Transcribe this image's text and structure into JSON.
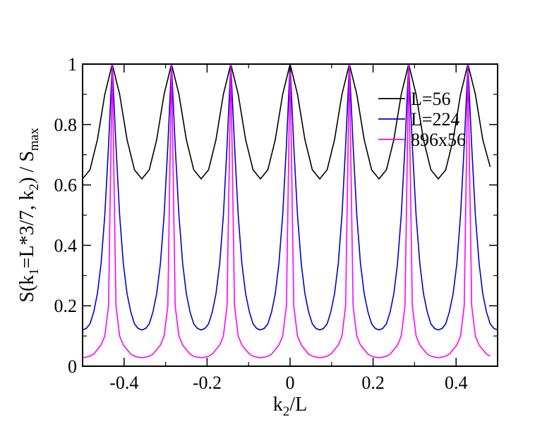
{
  "chart_data": {
    "type": "line",
    "title": "",
    "xlabel": {
      "main": "k",
      "sub": "2",
      "rest": "/L"
    },
    "ylabel": {
      "parts": [
        {
          "t": "S(k",
          "sub": false
        },
        {
          "t": "1",
          "sub": true
        },
        {
          "t": "=L*3/7, k",
          "sub": false
        },
        {
          "t": "2",
          "sub": true
        },
        {
          "t": ") / S",
          "sub": false
        },
        {
          "t": "max",
          "sub": true
        }
      ]
    },
    "xlim": [
      -0.5,
      0.5
    ],
    "ylim": [
      0,
      1
    ],
    "xticks": [
      -0.4,
      -0.2,
      0,
      0.2,
      0.4
    ],
    "xtick_labels": [
      "-0.4",
      "-0.2",
      "0",
      "0.2",
      "0.4"
    ],
    "yticks": [
      0,
      0.2,
      0.4,
      0.6,
      0.8,
      1
    ],
    "ytick_labels": [
      "0",
      "0.2",
      "0.4",
      "0.6",
      "0.8",
      "1"
    ],
    "grid": false,
    "legend_position": "top-right",
    "series": [
      {
        "name": "L=56",
        "color": "#000000",
        "x": [
          -0.5,
          -0.4821,
          -0.4643,
          -0.4464,
          -0.4286,
          -0.4107,
          -0.3929,
          -0.375,
          -0.3571,
          -0.3393,
          -0.3214,
          -0.3036,
          -0.2857,
          -0.2679,
          -0.25,
          -0.2321,
          -0.2143,
          -0.1964,
          -0.1786,
          -0.1607,
          -0.1429,
          -0.125,
          -0.1071,
          -0.0893,
          -0.0714,
          -0.0536,
          -0.0357,
          -0.0179,
          0,
          0.0179,
          0.0357,
          0.0536,
          0.0714,
          0.0893,
          0.1071,
          0.125,
          0.1429,
          0.1607,
          0.1786,
          0.1964,
          0.2143,
          0.2321,
          0.25,
          0.2679,
          0.2857,
          0.3036,
          0.3214,
          0.3393,
          0.3571,
          0.375,
          0.3929,
          0.4107,
          0.4286,
          0.4464,
          0.4643,
          0.4821
        ],
        "values": [
          0.62,
          0.65,
          0.75,
          0.9,
          1.0,
          0.9,
          0.75,
          0.65,
          0.62,
          0.65,
          0.75,
          0.9,
          1.0,
          0.9,
          0.75,
          0.65,
          0.62,
          0.65,
          0.75,
          0.9,
          1.0,
          0.9,
          0.75,
          0.65,
          0.62,
          0.65,
          0.75,
          0.9,
          1.0,
          0.9,
          0.75,
          0.65,
          0.62,
          0.65,
          0.75,
          0.9,
          1.0,
          0.9,
          0.75,
          0.65,
          0.62,
          0.65,
          0.75,
          0.9,
          1.0,
          0.9,
          0.75,
          0.65,
          0.62,
          0.65,
          0.75,
          0.9,
          1.0,
          0.9,
          0.75,
          0.66
        ]
      },
      {
        "name": "L=224",
        "color": "#0000cc",
        "x": [
          -0.5,
          -0.4911,
          -0.4821,
          -0.4732,
          -0.4643,
          -0.4554,
          -0.4464,
          -0.4375,
          -0.4286,
          -0.4196,
          -0.4107,
          -0.4018,
          -0.3929,
          -0.3839,
          -0.375,
          -0.3661,
          -0.3571,
          -0.3482,
          -0.3393,
          -0.3304,
          -0.3214,
          -0.3125,
          -0.3036,
          -0.2946,
          -0.2857,
          -0.2768,
          -0.2679,
          -0.2589,
          -0.25,
          -0.2411,
          -0.2321,
          -0.2232,
          -0.2143,
          -0.2054,
          -0.1964,
          -0.1875,
          -0.1786,
          -0.1696,
          -0.1607,
          -0.1518,
          -0.1429,
          -0.1339,
          -0.125,
          -0.1161,
          -0.1071,
          -0.0982,
          -0.0893,
          -0.0804,
          -0.0714,
          -0.0625,
          -0.0536,
          -0.0446,
          -0.0357,
          -0.0268,
          -0.0179,
          -0.0089,
          0,
          0.0089,
          0.0179,
          0.0268,
          0.0357,
          0.0446,
          0.0536,
          0.0625,
          0.0714,
          0.0804,
          0.0893,
          0.0982,
          0.1071,
          0.1161,
          0.125,
          0.1339,
          0.1429,
          0.1518,
          0.1607,
          0.1696,
          0.1786,
          0.1875,
          0.1964,
          0.2054,
          0.2143,
          0.2232,
          0.2321,
          0.2411,
          0.25,
          0.2589,
          0.2679,
          0.2768,
          0.2857,
          0.2946,
          0.3036,
          0.3125,
          0.3214,
          0.3304,
          0.3393,
          0.3482,
          0.3571,
          0.3661,
          0.375,
          0.3839,
          0.3929,
          0.4018,
          0.4107,
          0.4196,
          0.4286,
          0.4375,
          0.4464,
          0.4554,
          0.4643,
          0.4732,
          0.4821,
          0.4911,
          0.5
        ],
        "values": [
          0.12,
          0.125,
          0.14,
          0.18,
          0.24,
          0.34,
          0.5,
          0.73,
          1.0,
          0.73,
          0.5,
          0.34,
          0.24,
          0.18,
          0.14,
          0.125,
          0.12,
          0.125,
          0.14,
          0.18,
          0.24,
          0.34,
          0.5,
          0.73,
          1.0,
          0.73,
          0.5,
          0.34,
          0.24,
          0.18,
          0.14,
          0.125,
          0.12,
          0.125,
          0.14,
          0.18,
          0.24,
          0.34,
          0.5,
          0.73,
          1.0,
          0.73,
          0.5,
          0.34,
          0.24,
          0.18,
          0.14,
          0.125,
          0.12,
          0.125,
          0.14,
          0.18,
          0.24,
          0.34,
          0.5,
          0.73,
          1.0,
          0.73,
          0.5,
          0.34,
          0.24,
          0.18,
          0.14,
          0.125,
          0.12,
          0.125,
          0.14,
          0.18,
          0.24,
          0.34,
          0.5,
          0.73,
          1.0,
          0.73,
          0.5,
          0.34,
          0.24,
          0.18,
          0.14,
          0.125,
          0.12,
          0.125,
          0.14,
          0.18,
          0.24,
          0.34,
          0.5,
          0.73,
          1.0,
          0.73,
          0.5,
          0.34,
          0.24,
          0.18,
          0.14,
          0.125,
          0.12,
          0.125,
          0.14,
          0.18,
          0.24,
          0.34,
          0.5,
          0.73,
          1.0,
          0.73,
          0.5,
          0.34,
          0.24,
          0.18,
          0.14,
          0.125,
          0.12
        ]
      },
      {
        "name": "896x56",
        "color": "#ff00ff",
        "x": [
          -0.5,
          -0.4911,
          -0.4821,
          -0.4732,
          -0.4643,
          -0.4554,
          -0.4464,
          -0.4375,
          -0.4286,
          -0.4196,
          -0.4107,
          -0.4018,
          -0.3929,
          -0.3839,
          -0.375,
          -0.3661,
          -0.3571,
          -0.3482,
          -0.3393,
          -0.3304,
          -0.3214,
          -0.3125,
          -0.3036,
          -0.2946,
          -0.2857,
          -0.2768,
          -0.2679,
          -0.2589,
          -0.25,
          -0.2411,
          -0.2321,
          -0.2232,
          -0.2143,
          -0.2054,
          -0.1964,
          -0.1875,
          -0.1786,
          -0.1696,
          -0.1607,
          -0.1518,
          -0.1429,
          -0.1339,
          -0.125,
          -0.1161,
          -0.1071,
          -0.0982,
          -0.0893,
          -0.0804,
          -0.0714,
          -0.0625,
          -0.0536,
          -0.0446,
          -0.0357,
          -0.0268,
          -0.0179,
          -0.0089,
          0,
          0.0089,
          0.0179,
          0.0268,
          0.0357,
          0.0446,
          0.0536,
          0.0625,
          0.0714,
          0.0804,
          0.0893,
          0.0982,
          0.1071,
          0.1161,
          0.125,
          0.1339,
          0.1429,
          0.1518,
          0.1607,
          0.1696,
          0.1786,
          0.1875,
          0.1964,
          0.2054,
          0.2143,
          0.2232,
          0.2321,
          0.2411,
          0.25,
          0.2589,
          0.2679,
          0.2768,
          0.2857,
          0.2946,
          0.3036,
          0.3125,
          0.3214,
          0.3304,
          0.3393,
          0.3482,
          0.3571,
          0.3661,
          0.375,
          0.3839,
          0.3929,
          0.4018,
          0.4107,
          0.4196,
          0.4286,
          0.4375,
          0.4464,
          0.4554,
          0.4643,
          0.4732,
          0.4821
        ],
        "values": [
          0.028,
          0.03,
          0.033,
          0.04,
          0.055,
          0.07,
          0.1,
          0.2,
          1.0,
          0.2,
          0.1,
          0.07,
          0.055,
          0.04,
          0.033,
          0.03,
          0.028,
          0.03,
          0.033,
          0.04,
          0.055,
          0.07,
          0.1,
          0.2,
          1.0,
          0.2,
          0.1,
          0.07,
          0.055,
          0.04,
          0.033,
          0.03,
          0.028,
          0.03,
          0.033,
          0.04,
          0.055,
          0.07,
          0.1,
          0.2,
          1.0,
          0.2,
          0.1,
          0.07,
          0.055,
          0.04,
          0.033,
          0.03,
          0.028,
          0.03,
          0.033,
          0.04,
          0.055,
          0.07,
          0.1,
          0.2,
          1.0,
          0.2,
          0.1,
          0.07,
          0.055,
          0.04,
          0.033,
          0.03,
          0.028,
          0.03,
          0.033,
          0.04,
          0.055,
          0.07,
          0.1,
          0.2,
          1.0,
          0.2,
          0.1,
          0.07,
          0.055,
          0.04,
          0.033,
          0.03,
          0.028,
          0.03,
          0.033,
          0.04,
          0.055,
          0.07,
          0.1,
          0.2,
          1.0,
          0.2,
          0.1,
          0.07,
          0.055,
          0.04,
          0.033,
          0.03,
          0.028,
          0.03,
          0.033,
          0.04,
          0.055,
          0.07,
          0.1,
          0.2,
          1.0,
          0.2,
          0.1,
          0.07,
          0.055,
          0.04,
          0.033
        ]
      }
    ]
  }
}
